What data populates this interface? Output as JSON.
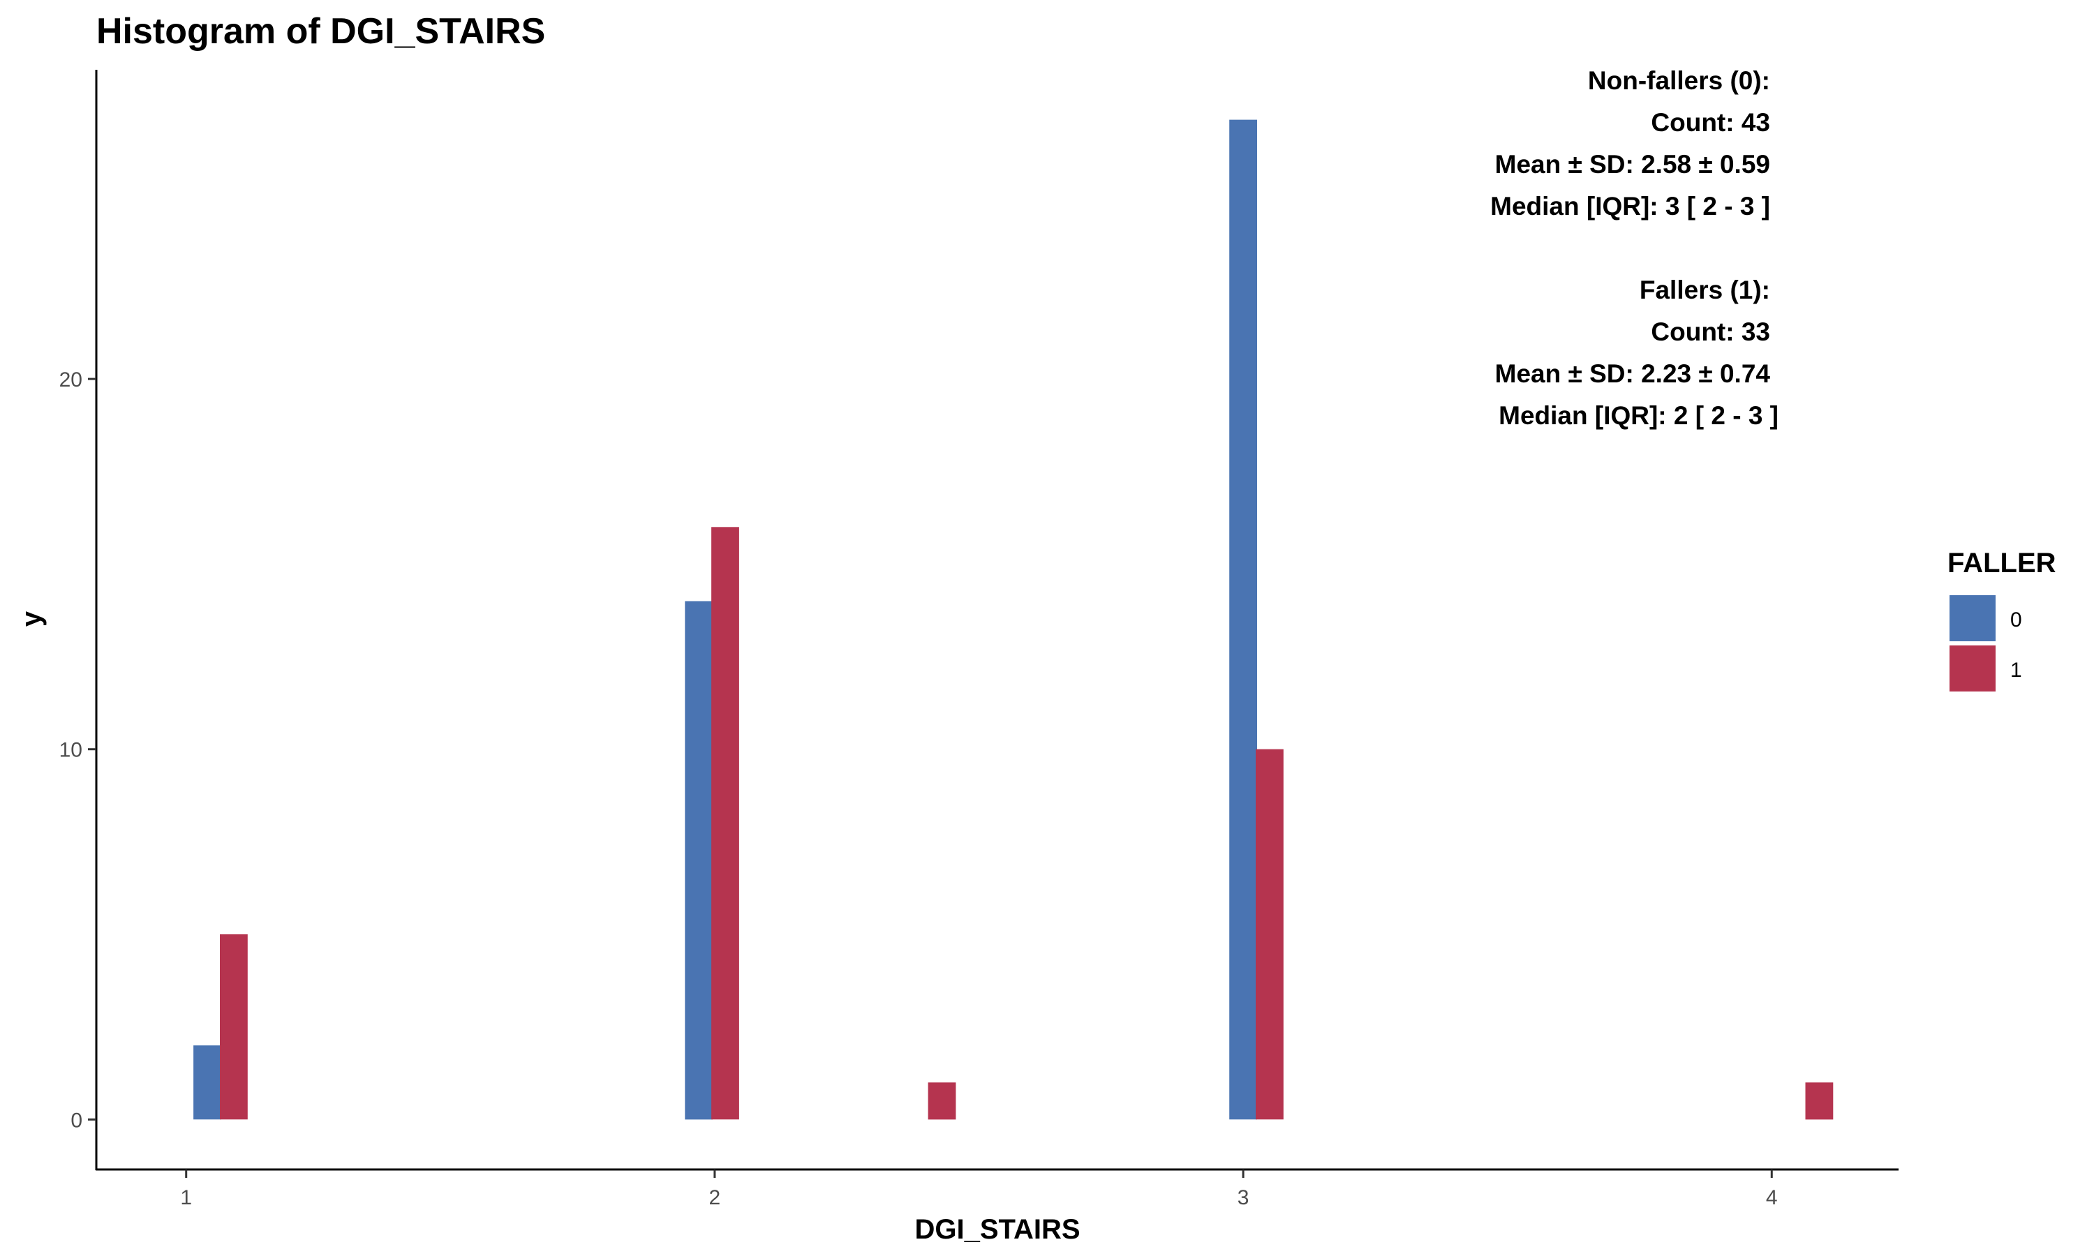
{
  "chart_data": {
    "type": "bar",
    "title": "Histogram of DGI_STAIRS",
    "xlabel": "DGI_STAIRS",
    "ylabel": "y",
    "xlim": [
      0.83,
      4.24
    ],
    "ylim": [
      -1.35,
      28.35
    ],
    "x_ticks": [
      "1",
      "2",
      "3",
      "4"
    ],
    "y_ticks": [
      "0",
      "10",
      "20"
    ],
    "bin_width": 0.0526,
    "legend": {
      "title": "FALLER",
      "position": "right"
    },
    "series": [
      {
        "name": "0",
        "color": "#4A74B2",
        "bars": [
          {
            "x": 1.04,
            "y": 2
          },
          {
            "x": 1.97,
            "y": 14
          },
          {
            "x": 3.0,
            "y": 27
          }
        ]
      },
      {
        "name": "1",
        "color": "#B5344F",
        "bars": [
          {
            "x": 1.09,
            "y": 5
          },
          {
            "x": 2.02,
            "y": 16
          },
          {
            "x": 2.43,
            "y": 1
          },
          {
            "x": 3.05,
            "y": 10
          },
          {
            "x": 4.09,
            "y": 1
          }
        ]
      }
    ],
    "annotations": [
      "Non-fallers (0):",
      "Count: 43",
      "Mean ± SD: 2.58 ± 0.59",
      "Median [IQR]: 3 [ 2 - 3 ]",
      "Fallers (1):",
      "Count: 33",
      "Mean ± SD: 2.23 ± 0.74",
      "Median [IQR]: 2 [ 2 - 3 ]"
    ]
  }
}
